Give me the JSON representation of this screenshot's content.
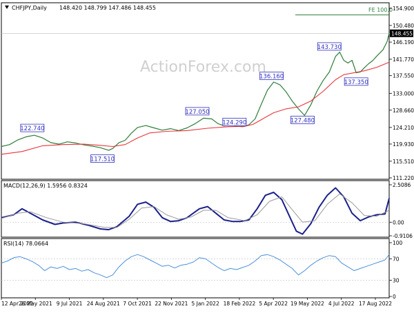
{
  "header": {
    "symbol": "CHFJPY,Daily",
    "ohlc": "148.420 148.799 147.486 148.455"
  },
  "watermark": "ActionForex.com",
  "colors": {
    "price": "#2e7d3a",
    "ma": "#e8343a",
    "macd": "#1a1f8c",
    "signal": "#999999",
    "rsi": "#4a90d9",
    "label_text": "#3030c0",
    "fe_line": "#2e7d3a"
  },
  "fe_label": "FE 100.0",
  "macd_label": "MACD(12,26,9) 1.5956 0.8324",
  "rsi_label": "RSI(14) 78.0664",
  "chart_data": [
    {
      "type": "line",
      "panel": "price",
      "ylim": [
        111.22,
        154.9
      ],
      "y_ticks": [
        "154.900",
        "150.480",
        "146.190",
        "141.770",
        "137.550",
        "133.000",
        "128.660",
        "124.210",
        "119.930",
        "115.510",
        "111.220"
      ],
      "current_price": "148.455",
      "fe_level": 153.2,
      "x_labels": [
        "12 Apr 2021",
        "26 May 2021",
        "9 Jul 2021",
        "24 Aug 2021",
        "7 Oct 2021",
        "22 Nov 2021",
        "5 Jan 2022",
        "18 Feb 2022",
        "5 Apr 2022",
        "19 May 2022",
        "4 Jul 2022",
        "17 Aug 2022"
      ],
      "series": [
        {
          "key": "price",
          "points": [
            [
              0,
              119.3
            ],
            [
              4,
              119.8
            ],
            [
              8,
              121.0
            ],
            [
              12,
              121.8
            ],
            [
              16,
              122.2
            ],
            [
              20,
              121.5
            ],
            [
              24,
              120.3
            ],
            [
              28,
              119.9
            ],
            [
              32,
              120.5
            ],
            [
              36,
              120.2
            ],
            [
              40,
              119.7
            ],
            [
              44,
              119.4
            ],
            [
              48,
              119.0
            ],
            [
              52,
              118.3
            ],
            [
              54,
              118.8
            ],
            [
              57,
              120.3
            ],
            [
              60,
              120.9
            ],
            [
              63,
              122.7
            ],
            [
              66,
              124.2
            ],
            [
              70,
              124.7
            ],
            [
              74,
              124.1
            ],
            [
              78,
              123.5
            ],
            [
              82,
              123.9
            ],
            [
              86,
              123.4
            ],
            [
              90,
              124.1
            ],
            [
              94,
              125.2
            ],
            [
              98,
              126.6
            ],
            [
              102,
              126.4
            ],
            [
              105,
              125.2
            ],
            [
              108,
              124.6
            ],
            [
              111,
              125.0
            ],
            [
              114,
              124.5
            ],
            [
              117,
              124.4
            ],
            [
              120,
              124.9
            ],
            [
              123,
              126.4
            ],
            [
              126,
              130.2
            ],
            [
              129,
              133.8
            ],
            [
              132,
              135.9
            ],
            [
              135,
              135.2
            ],
            [
              138,
              133.4
            ],
            [
              141,
              131.0
            ],
            [
              144,
              129.0
            ],
            [
              147,
              127.3
            ],
            [
              150,
              130.0
            ],
            [
              153,
              133.6
            ],
            [
              156,
              136.3
            ],
            [
              159,
              138.5
            ],
            [
              162,
              142.5
            ],
            [
              164,
              143.6
            ],
            [
              166,
              141.5
            ],
            [
              168,
              140.8
            ],
            [
              170,
              141.5
            ],
            [
              172,
              138.3
            ],
            [
              174,
              138.5
            ],
            [
              176,
              139.6
            ],
            [
              178,
              140.6
            ],
            [
              180,
              141.4
            ],
            [
              182,
              142.6
            ],
            [
              185,
              144.2
            ],
            [
              187,
              146.3
            ],
            [
              188,
              148.5
            ]
          ]
        },
        {
          "key": "ma",
          "points": [
            [
              0,
              117.3
            ],
            [
              10,
              118.0
            ],
            [
              20,
              119.5
            ],
            [
              30,
              119.8
            ],
            [
              40,
              119.9
            ],
            [
              48,
              119.6
            ],
            [
              54,
              119.3
            ],
            [
              60,
              119.8
            ],
            [
              66,
              121.5
            ],
            [
              72,
              122.8
            ],
            [
              80,
              123.2
            ],
            [
              90,
              123.4
            ],
            [
              100,
              124.0
            ],
            [
              110,
              124.4
            ],
            [
              118,
              124.5
            ],
            [
              122,
              125.0
            ],
            [
              126,
              126.2
            ],
            [
              132,
              128.0
            ],
            [
              138,
              129.0
            ],
            [
              144,
              129.5
            ],
            [
              150,
              131.0
            ],
            [
              156,
              133.5
            ],
            [
              162,
              136.5
            ],
            [
              166,
              137.8
            ],
            [
              170,
              138.2
            ],
            [
              176,
              138.8
            ],
            [
              182,
              139.7
            ],
            [
              188,
              141.0
            ]
          ]
        }
      ],
      "annotations": [
        {
          "text": "122.740",
          "x": 15,
          "y": 122.74,
          "pos": "above"
        },
        {
          "text": "117.510",
          "x": 49,
          "y": 117.51,
          "pos": "below"
        },
        {
          "text": "127.050",
          "x": 95,
          "y": 127.05,
          "pos": "above"
        },
        {
          "text": "124.290",
          "x": 113,
          "y": 124.29,
          "pos": "above"
        },
        {
          "text": "136.160",
          "x": 131,
          "y": 136.16,
          "pos": "above"
        },
        {
          "text": "127.480",
          "x": 146,
          "y": 127.48,
          "pos": "below"
        },
        {
          "text": "143.730",
          "x": 159,
          "y": 143.73,
          "pos": "above"
        },
        {
          "text": "137.350",
          "x": 172,
          "y": 137.35,
          "pos": "below"
        }
      ]
    },
    {
      "type": "line",
      "panel": "macd",
      "ylim": [
        -0.9106,
        2.5086
      ],
      "y_ticks": [
        "2.5086",
        "0.00",
        "-0.9106"
      ],
      "series": [
        {
          "key": "macd",
          "points": [
            [
              0,
              0.3
            ],
            [
              6,
              0.5
            ],
            [
              10,
              0.9
            ],
            [
              14,
              0.6
            ],
            [
              20,
              0.15
            ],
            [
              26,
              -0.15
            ],
            [
              30,
              -0.05
            ],
            [
              36,
              0.0
            ],
            [
              42,
              -0.2
            ],
            [
              48,
              -0.45
            ],
            [
              52,
              -0.5
            ],
            [
              56,
              -0.3
            ],
            [
              62,
              0.4
            ],
            [
              66,
              1.2
            ],
            [
              70,
              1.35
            ],
            [
              74,
              1.0
            ],
            [
              78,
              0.3
            ],
            [
              82,
              0.05
            ],
            [
              86,
              0.1
            ],
            [
              90,
              0.3
            ],
            [
              96,
              0.9
            ],
            [
              100,
              1.05
            ],
            [
              104,
              0.6
            ],
            [
              108,
              0.15
            ],
            [
              112,
              0.05
            ],
            [
              116,
              0.05
            ],
            [
              120,
              0.15
            ],
            [
              124,
              0.9
            ],
            [
              128,
              1.8
            ],
            [
              132,
              2.0
            ],
            [
              136,
              1.5
            ],
            [
              140,
              0.3
            ],
            [
              143,
              -0.6
            ],
            [
              146,
              -0.8
            ],
            [
              150,
              -0.1
            ],
            [
              154,
              1.0
            ],
            [
              158,
              1.8
            ],
            [
              162,
              2.3
            ],
            [
              166,
              1.7
            ],
            [
              170,
              0.6
            ],
            [
              174,
              0.1
            ],
            [
              178,
              0.35
            ],
            [
              182,
              0.5
            ],
            [
              186,
              0.55
            ],
            [
              188,
              1.6
            ]
          ]
        },
        {
          "key": "signal",
          "points": [
            [
              0,
              0.25
            ],
            [
              8,
              0.6
            ],
            [
              14,
              0.7
            ],
            [
              22,
              0.3
            ],
            [
              30,
              0.0
            ],
            [
              40,
              -0.1
            ],
            [
              50,
              -0.35
            ],
            [
              56,
              -0.35
            ],
            [
              62,
              0.2
            ],
            [
              68,
              0.95
            ],
            [
              74,
              1.05
            ],
            [
              80,
              0.5
            ],
            [
              86,
              0.2
            ],
            [
              92,
              0.35
            ],
            [
              98,
              0.8
            ],
            [
              104,
              0.8
            ],
            [
              110,
              0.3
            ],
            [
              118,
              0.1
            ],
            [
              124,
              0.5
            ],
            [
              130,
              1.4
            ],
            [
              136,
              1.7
            ],
            [
              140,
              1.0
            ],
            [
              146,
              0.0
            ],
            [
              152,
              0.1
            ],
            [
              158,
              1.2
            ],
            [
              164,
              1.9
            ],
            [
              170,
              1.3
            ],
            [
              176,
              0.45
            ],
            [
              182,
              0.4
            ],
            [
              188,
              0.8
            ]
          ]
        }
      ]
    },
    {
      "type": "line",
      "panel": "rsi",
      "ylim": [
        0,
        100
      ],
      "y_ticks": [
        "100",
        "70",
        "30",
        "0"
      ],
      "series": [
        {
          "key": "rsi",
          "points": [
            [
              0,
              62
            ],
            [
              3,
              66
            ],
            [
              6,
              72
            ],
            [
              9,
              74
            ],
            [
              12,
              70
            ],
            [
              15,
              65
            ],
            [
              18,
              58
            ],
            [
              21,
              48
            ],
            [
              24,
              55
            ],
            [
              27,
              52
            ],
            [
              30,
              56
            ],
            [
              33,
              50
            ],
            [
              36,
              52
            ],
            [
              39,
              47
            ],
            [
              42,
              50
            ],
            [
              45,
              44
            ],
            [
              48,
              40
            ],
            [
              51,
              35
            ],
            [
              54,
              40
            ],
            [
              57,
              55
            ],
            [
              60,
              66
            ],
            [
              63,
              74
            ],
            [
              66,
              78
            ],
            [
              69,
              74
            ],
            [
              72,
              68
            ],
            [
              75,
              62
            ],
            [
              78,
              56
            ],
            [
              81,
              58
            ],
            [
              84,
              53
            ],
            [
              87,
              58
            ],
            [
              90,
              60
            ],
            [
              93,
              64
            ],
            [
              96,
              72
            ],
            [
              99,
              70
            ],
            [
              102,
              62
            ],
            [
              105,
              54
            ],
            [
              108,
              48
            ],
            [
              111,
              52
            ],
            [
              114,
              50
            ],
            [
              117,
              54
            ],
            [
              120,
              58
            ],
            [
              123,
              66
            ],
            [
              126,
              76
            ],
            [
              129,
              78
            ],
            [
              132,
              74
            ],
            [
              135,
              68
            ],
            [
              138,
              60
            ],
            [
              141,
              52
            ],
            [
              144,
              40
            ],
            [
              147,
              48
            ],
            [
              150,
              58
            ],
            [
              153,
              66
            ],
            [
              156,
              72
            ],
            [
              159,
              76
            ],
            [
              162,
              74
            ],
            [
              165,
              62
            ],
            [
              168,
              55
            ],
            [
              171,
              48
            ],
            [
              174,
              52
            ],
            [
              177,
              56
            ],
            [
              180,
              60
            ],
            [
              183,
              64
            ],
            [
              186,
              68
            ],
            [
              188,
              78
            ]
          ]
        }
      ],
      "ref_lines": [
        70,
        30
      ]
    }
  ]
}
